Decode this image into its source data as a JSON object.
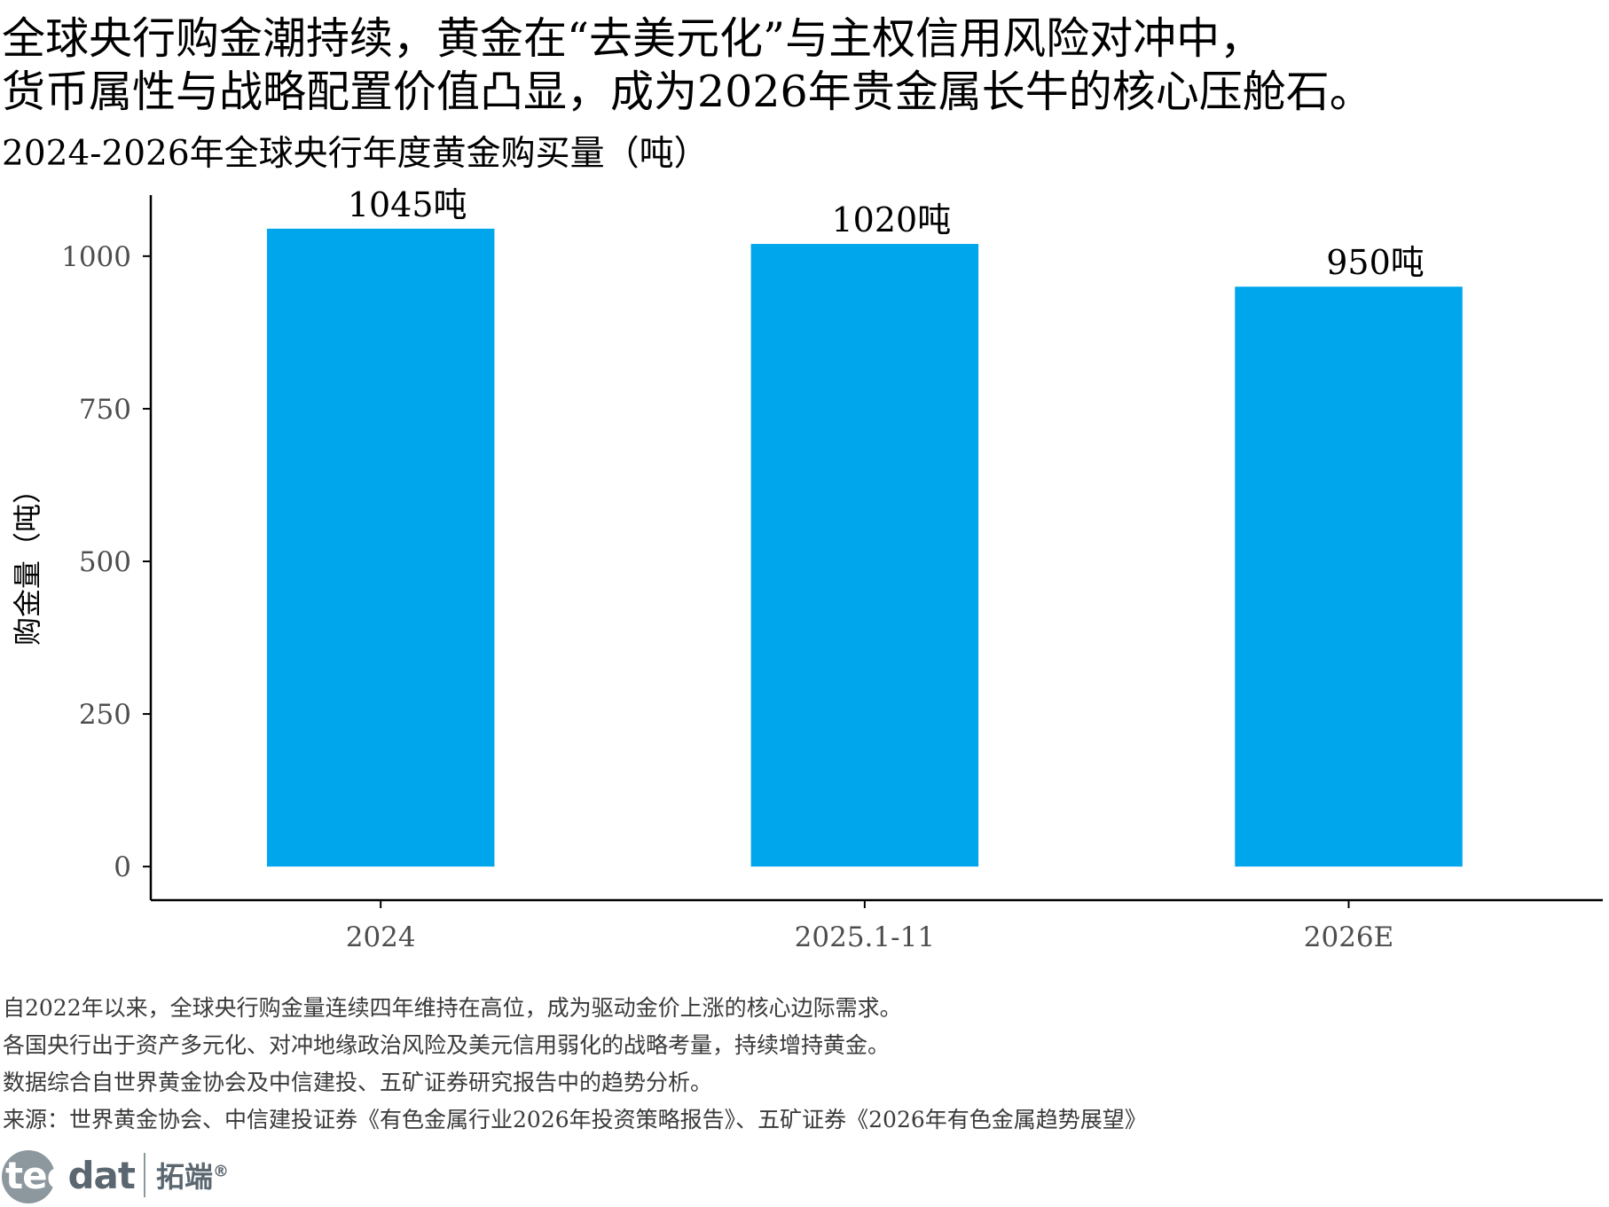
{
  "headline": {
    "line1": "全球央行购金潮持续，黄金在“去美元化”与主权信用风险对冲中，",
    "line2": "货币属性与战略配置价值凸显，成为2026年贵金属长牛的核心压舱石。"
  },
  "chart_data": {
    "type": "bar",
    "title": "2024-2026年全球央行年度黄金购买量（吨）",
    "ylabel": "购金量（吨）",
    "xlabel": "",
    "categories": [
      "2024",
      "2025.1-11",
      "2026E"
    ],
    "values": [
      1045,
      1020,
      950
    ],
    "data_labels": [
      "1045吨",
      "1020吨",
      "950吨"
    ],
    "yticks": [
      0,
      250,
      500,
      750,
      1000
    ],
    "ylim": [
      -55,
      1100
    ],
    "grid": false,
    "legend": "none",
    "bar_color": "#00A6EC"
  },
  "notes": [
    "自2022年以来，全球央行购金量连续四年维持在高位，成为驱动金价上涨的核心边际需求。",
    "各国央行出于资产多元化、对冲地缘政治风险及美元信用弱化的战略考量，持续增持黄金。",
    "数据综合自世界黄金协会及中信建投、五矿证券研究报告中的趋势分析。",
    "来源：世界黄金协会、中信建投证券《有色金属行业2026年投资策略报告》、五矿证券《2026年有色金属趋势展望》"
  ],
  "logo": {
    "mark_prefix": "tec",
    "mark_suffix": "dat",
    "cn": "拓端",
    "reg": "®"
  }
}
